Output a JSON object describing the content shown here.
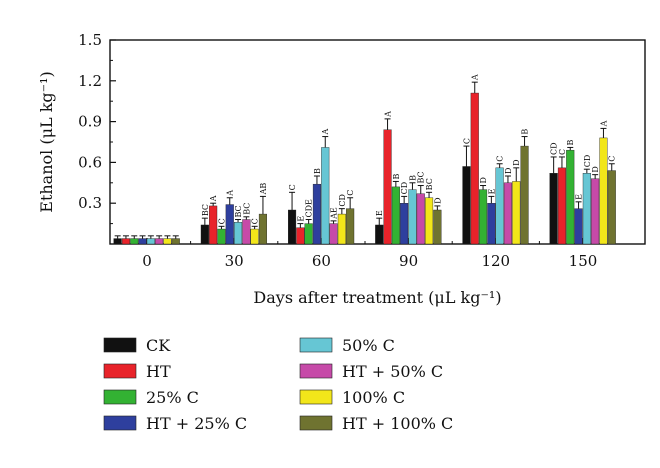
{
  "chart_data": {
    "type": "bar",
    "title": "",
    "xlabel": "Days after treatment (μL kg⁻¹)",
    "ylabel": "Ethanol (μL kg⁻¹)",
    "ylim": [
      0,
      1.5
    ],
    "yticks": [
      "0.3",
      "0.6",
      "0.9",
      "1.2",
      "1.5"
    ],
    "categories": [
      "0",
      "30",
      "60",
      "90",
      "120",
      "150"
    ],
    "legend_position": "bottom",
    "series": [
      {
        "name": "CK",
        "color": "#111111",
        "values": [
          0.04,
          0.14,
          0.25,
          0.14,
          0.57,
          0.52
        ],
        "errors": [
          0.02,
          0.05,
          0.13,
          0.05,
          0.15,
          0.12
        ],
        "labels": [
          "",
          "BC",
          "C",
          "E",
          "C",
          "CD"
        ]
      },
      {
        "name": "HT",
        "color": "#e8232a",
        "values": [
          0.04,
          0.28,
          0.12,
          0.84,
          1.11,
          0.56
        ],
        "errors": [
          0.02,
          0.02,
          0.03,
          0.08,
          0.08,
          0.08
        ],
        "labels": [
          "",
          "A",
          "E",
          "A",
          "A",
          "C"
        ]
      },
      {
        "name": "25% C",
        "color": "#33b233",
        "values": [
          0.04,
          0.11,
          0.15,
          0.42,
          0.4,
          0.69
        ],
        "errors": [
          0.02,
          0.02,
          0.03,
          0.04,
          0.03,
          0.02
        ],
        "labels": [
          "",
          "C",
          "CDE",
          "B",
          "D",
          "B"
        ]
      },
      {
        "name": "HT + 25% C",
        "color": "#2e3f9e",
        "values": [
          0.04,
          0.29,
          0.44,
          0.3,
          0.3,
          0.26
        ],
        "errors": [
          0.02,
          0.05,
          0.06,
          0.05,
          0.05,
          0.05
        ],
        "labels": [
          "",
          "A",
          "B",
          "CD",
          "E",
          "E"
        ]
      },
      {
        "name": "50% C",
        "color": "#66c6d4",
        "values": [
          0.04,
          0.16,
          0.71,
          0.4,
          0.56,
          0.52
        ],
        "errors": [
          0.02,
          0.02,
          0.08,
          0.05,
          0.03,
          0.03
        ],
        "labels": [
          "",
          "BC",
          "A",
          "B",
          "C",
          "CD"
        ]
      },
      {
        "name": "HT + 50% C",
        "color": "#c64aa8",
        "values": [
          0.04,
          0.18,
          0.15,
          0.37,
          0.45,
          0.48
        ],
        "errors": [
          0.02,
          0.02,
          0.02,
          0.06,
          0.05,
          0.03
        ],
        "labels": [
          "",
          "BC",
          "AE",
          "BC",
          "D",
          "D"
        ]
      },
      {
        "name": "100% C",
        "color": "#f2e61a",
        "values": [
          0.04,
          0.11,
          0.22,
          0.34,
          0.46,
          0.78
        ],
        "errors": [
          0.02,
          0.02,
          0.04,
          0.04,
          0.1,
          0.07
        ],
        "labels": [
          "",
          "C",
          "CD",
          "BC",
          "D",
          "A"
        ]
      },
      {
        "name": "HT + 100% C",
        "color": "#6f7330",
        "values": [
          0.04,
          0.22,
          0.26,
          0.25,
          0.72,
          0.54
        ],
        "errors": [
          0.02,
          0.13,
          0.08,
          0.03,
          0.07,
          0.05
        ],
        "labels": [
          "",
          "AB",
          "C",
          "D",
          "B",
          "C"
        ]
      }
    ]
  }
}
